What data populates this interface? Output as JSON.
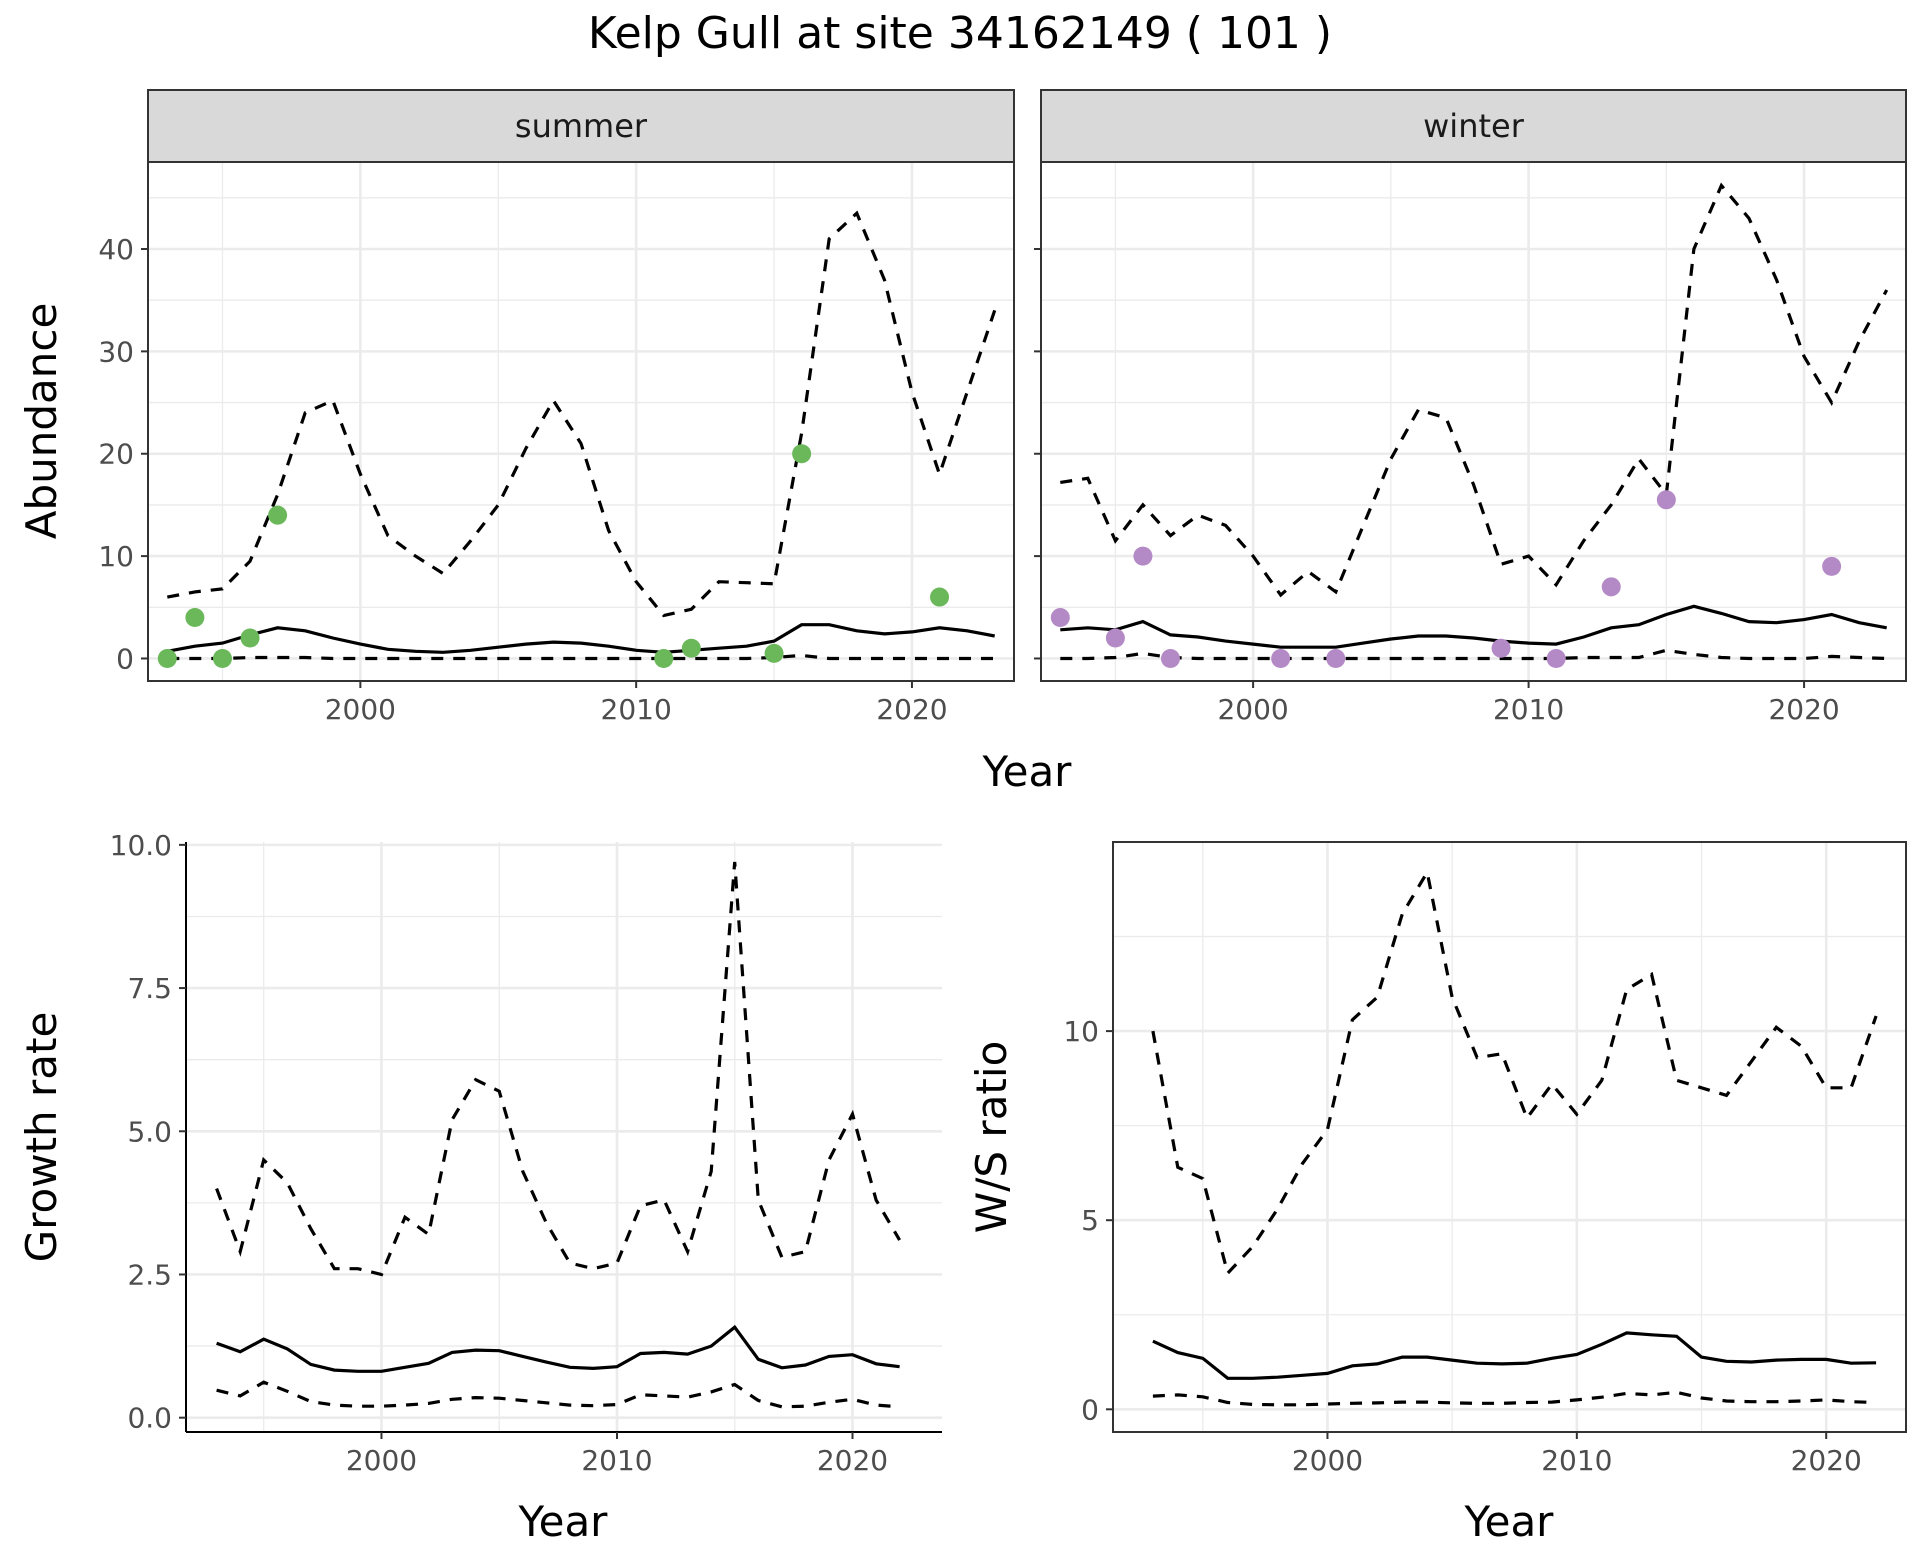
{
  "title": "Kelp Gull at site 34162149 ( 101 )",
  "colors": {
    "summer_points": "#6ab85a",
    "winter_points": "#b48ac6",
    "lines": "#000000",
    "strip_fill": "#d9d9d9",
    "grid": "#ebebeb"
  },
  "chart_data": [
    {
      "type": "line",
      "title": "",
      "ylabel": "Abundance",
      "xlabel": "Year",
      "xlim": [
        1992.3,
        2023.7
      ],
      "ylim": [
        -2.2,
        48.5
      ],
      "x_ticks": [
        2000,
        2010,
        2020
      ],
      "y_ticks": [
        0,
        10,
        20,
        30,
        40
      ],
      "y_tick_labels": [
        "0",
        "10",
        "20",
        "30",
        "40"
      ],
      "grid": true,
      "legend": "none",
      "facets": [
        {
          "strip": "summer",
          "point_color": "#6ab85a",
          "observed": {
            "x": [
              1993,
              1994,
              1995,
              1996,
              1997,
              2011,
              2012,
              2015,
              2016,
              2021
            ],
            "y": [
              0,
              4,
              0,
              2,
              14,
              0,
              1,
              0.5,
              20,
              6
            ]
          },
          "series": [
            {
              "style": "dashed",
              "x": [
                1993,
                1994,
                1995,
                1996,
                1997,
                1998,
                1999,
                2000,
                2001,
                2002,
                2003,
                2004,
                2005,
                2006,
                2007,
                2008,
                2009,
                2010,
                2011,
                2012,
                2013,
                2014,
                2015,
                2016,
                2017,
                2018,
                2019,
                2020,
                2021,
                2022,
                2023
              ],
              "values": [
                6,
                6.5,
                6.8,
                9.5,
                16,
                24,
                25.2,
                18,
                12,
                10,
                8.3,
                11.5,
                15,
                20.5,
                25.2,
                21,
                12.5,
                7.5,
                4.2,
                4.8,
                7.5,
                7.4,
                7.3,
                22,
                41,
                43.5,
                37,
                26,
                18,
                26,
                34
              ]
            },
            {
              "style": "solid",
              "x": [
                1993,
                1994,
                1995,
                1996,
                1997,
                1998,
                1999,
                2000,
                2001,
                2002,
                2003,
                2004,
                2005,
                2006,
                2007,
                2008,
                2009,
                2010,
                2011,
                2012,
                2013,
                2014,
                2015,
                2016,
                2017,
                2018,
                2019,
                2020,
                2021,
                2022,
                2023
              ],
              "values": [
                0.7,
                1.2,
                1.5,
                2.3,
                3.0,
                2.7,
                2.0,
                1.4,
                0.9,
                0.7,
                0.6,
                0.8,
                1.1,
                1.4,
                1.6,
                1.5,
                1.2,
                0.8,
                0.6,
                0.8,
                1.0,
                1.2,
                1.7,
                3.3,
                3.3,
                2.7,
                2.4,
                2.6,
                3.0,
                2.7,
                2.2
              ]
            },
            {
              "style": "dashed",
              "x": [
                1993,
                1994,
                1995,
                1996,
                1997,
                1998,
                1999,
                2000,
                2001,
                2002,
                2003,
                2004,
                2005,
                2006,
                2007,
                2008,
                2009,
                2010,
                2011,
                2012,
                2013,
                2014,
                2015,
                2016,
                2017,
                2018,
                2019,
                2020,
                2021,
                2022,
                2023
              ],
              "values": [
                0,
                0,
                0,
                0.1,
                0.1,
                0.1,
                0,
                0,
                0,
                0,
                0,
                0,
                0,
                0,
                0,
                0,
                0,
                0,
                0,
                0,
                0,
                0,
                0.1,
                0.3,
                0,
                0,
                0,
                0,
                0,
                0,
                0
              ]
            }
          ]
        },
        {
          "strip": "winter",
          "point_color": "#b48ac6",
          "observed": {
            "x": [
              1993,
              1995,
              1996,
              1997,
              2001,
              2003,
              2009,
              2011,
              2013,
              2015,
              2021
            ],
            "y": [
              4,
              2,
              10,
              0,
              0,
              0,
              1,
              0,
              7,
              15.5,
              9
            ]
          },
          "series": [
            {
              "style": "dashed",
              "x": [
                1993,
                1994,
                1995,
                1996,
                1997,
                1998,
                1999,
                2000,
                2001,
                2002,
                2003,
                2004,
                2005,
                2006,
                2007,
                2008,
                2009,
                2010,
                2011,
                2012,
                2013,
                2014,
                2015,
                2016,
                2017,
                2018,
                2019,
                2020,
                2021,
                2022,
                2023
              ],
              "values": [
                17.2,
                17.6,
                11.5,
                15,
                12,
                14,
                13,
                10,
                6.2,
                8.5,
                6.5,
                13,
                19.5,
                24.3,
                23.5,
                17,
                9.2,
                10,
                7.2,
                11.5,
                15,
                19.5,
                16,
                40,
                46.2,
                43,
                37,
                29.5,
                25,
                31,
                36
              ]
            },
            {
              "style": "solid",
              "x": [
                1993,
                1994,
                1995,
                1996,
                1997,
                1998,
                1999,
                2000,
                2001,
                2002,
                2003,
                2004,
                2005,
                2006,
                2007,
                2008,
                2009,
                2010,
                2011,
                2012,
                2013,
                2014,
                2015,
                2016,
                2017,
                2018,
                2019,
                2020,
                2021,
                2022,
                2023
              ],
              "values": [
                2.8,
                3.0,
                2.8,
                3.6,
                2.3,
                2.1,
                1.7,
                1.4,
                1.1,
                1.1,
                1.1,
                1.5,
                1.9,
                2.2,
                2.2,
                2.0,
                1.7,
                1.5,
                1.4,
                2.1,
                3.0,
                3.3,
                4.3,
                5.1,
                4.4,
                3.6,
                3.5,
                3.8,
                4.3,
                3.5,
                3.0
              ]
            },
            {
              "style": "dashed",
              "x": [
                1993,
                1994,
                1995,
                1996,
                1997,
                1998,
                1999,
                2000,
                2001,
                2002,
                2003,
                2004,
                2005,
                2006,
                2007,
                2008,
                2009,
                2010,
                2011,
                2012,
                2013,
                2014,
                2015,
                2016,
                2017,
                2018,
                2019,
                2020,
                2021,
                2022,
                2023
              ],
              "values": [
                0,
                0,
                0.1,
                0.5,
                0.1,
                0,
                0,
                0,
                0,
                0,
                0,
                0,
                0,
                0,
                0,
                0,
                0,
                0,
                0,
                0.1,
                0.1,
                0.1,
                0.8,
                0.4,
                0.1,
                0,
                0,
                0,
                0.2,
                0.1,
                0
              ]
            }
          ]
        }
      ]
    },
    {
      "type": "line",
      "title": "",
      "ylabel": "Growth rate",
      "xlabel": "Year",
      "xlim": [
        1991.7,
        2023.8
      ],
      "ylim": [
        -0.25,
        10.05
      ],
      "x_ticks": [
        2000,
        2010,
        2020
      ],
      "y_ticks": [
        0,
        2.5,
        5,
        7.5,
        10
      ],
      "y_tick_labels": [
        "0.0",
        "2.5",
        "5.0",
        "7.5",
        "10.0"
      ],
      "grid": true,
      "legend": "none",
      "series": [
        {
          "style": "dashed",
          "x": [
            1993,
            1994,
            1995,
            1996,
            1997,
            1998,
            1999,
            2000,
            2001,
            2002,
            2003,
            2004,
            2005,
            2006,
            2007,
            2008,
            2009,
            2010,
            2011,
            2012,
            2013,
            2014,
            2015,
            2016,
            2017,
            2018,
            2019,
            2020,
            2021,
            2022
          ],
          "values": [
            4.0,
            2.9,
            4.5,
            4.1,
            3.3,
            2.6,
            2.6,
            2.5,
            3.5,
            3.2,
            5.2,
            5.9,
            5.7,
            4.3,
            3.4,
            2.7,
            2.6,
            2.7,
            3.7,
            3.8,
            2.9,
            4.3,
            9.7,
            3.8,
            2.8,
            2.9,
            4.5,
            5.3,
            3.8,
            3.1
          ]
        },
        {
          "style": "solid",
          "x": [
            1993,
            1994,
            1995,
            1996,
            1997,
            1998,
            1999,
            2000,
            2001,
            2002,
            2003,
            2004,
            2005,
            2006,
            2007,
            2008,
            2009,
            2010,
            2011,
            2012,
            2013,
            2014,
            2015,
            2016,
            2017,
            2018,
            2019,
            2020,
            2021,
            2022
          ],
          "values": [
            1.3,
            1.15,
            1.37,
            1.2,
            0.93,
            0.83,
            0.81,
            0.81,
            0.88,
            0.95,
            1.14,
            1.18,
            1.17,
            1.07,
            0.97,
            0.88,
            0.86,
            0.89,
            1.12,
            1.14,
            1.11,
            1.25,
            1.58,
            1.02,
            0.87,
            0.92,
            1.07,
            1.1,
            0.94,
            0.89
          ]
        },
        {
          "style": "dashed",
          "x": [
            1993,
            1994,
            1995,
            1996,
            1997,
            1998,
            1999,
            2000,
            2001,
            2002,
            2003,
            2004,
            2005,
            2006,
            2007,
            2008,
            2009,
            2010,
            2011,
            2012,
            2013,
            2014,
            2015,
            2016,
            2017,
            2018,
            2019,
            2020,
            2021,
            2022
          ],
          "values": [
            0.48,
            0.38,
            0.62,
            0.46,
            0.28,
            0.22,
            0.2,
            0.2,
            0.22,
            0.25,
            0.32,
            0.35,
            0.34,
            0.3,
            0.26,
            0.22,
            0.21,
            0.23,
            0.4,
            0.38,
            0.36,
            0.45,
            0.58,
            0.3,
            0.19,
            0.2,
            0.27,
            0.32,
            0.22,
            0.19
          ]
        }
      ]
    },
    {
      "type": "line",
      "title": "",
      "ylabel": "W/S ratio",
      "xlabel": "Year",
      "xlim": [
        1991.4,
        2023.2
      ],
      "ylim": [
        -0.6,
        15.0
      ],
      "x_ticks": [
        2000,
        2010,
        2020
      ],
      "y_ticks": [
        0,
        5,
        10
      ],
      "y_tick_labels": [
        "0",
        "5",
        "10"
      ],
      "grid": true,
      "legend": "none",
      "series": [
        {
          "style": "dashed",
          "x": [
            1993,
            1994,
            1995,
            1996,
            1997,
            1998,
            1999,
            2000,
            2001,
            2002,
            2003,
            2004,
            2005,
            2006,
            2007,
            2008,
            2009,
            2010,
            2011,
            2012,
            2013,
            2014,
            2015,
            2016,
            2017,
            2018,
            2019,
            2020,
            2021,
            2022
          ],
          "values": [
            10,
            6.4,
            6.1,
            3.6,
            4.3,
            5.3,
            6.5,
            7.4,
            10.3,
            10.9,
            13.1,
            14.2,
            10.9,
            9.3,
            9.4,
            7.7,
            8.6,
            7.8,
            8.7,
            11.1,
            11.5,
            8.7,
            8.5,
            8.3,
            9.2,
            10.1,
            9.6,
            8.5,
            8.5,
            10.4
          ]
        },
        {
          "style": "solid",
          "x": [
            1993,
            1994,
            1995,
            1996,
            1997,
            1998,
            1999,
            2000,
            2001,
            2002,
            2003,
            2004,
            2005,
            2006,
            2007,
            2008,
            2009,
            2010,
            2011,
            2012,
            2013,
            2014,
            2015,
            2016,
            2017,
            2018,
            2019,
            2020,
            2021,
            2022
          ],
          "values": [
            1.8,
            1.5,
            1.35,
            0.82,
            0.82,
            0.85,
            0.9,
            0.95,
            1.15,
            1.2,
            1.38,
            1.38,
            1.3,
            1.22,
            1.2,
            1.22,
            1.35,
            1.45,
            1.72,
            2.02,
            1.97,
            1.93,
            1.38,
            1.27,
            1.25,
            1.3,
            1.32,
            1.32,
            1.22,
            1.23
          ]
        },
        {
          "style": "dashed",
          "x": [
            1993,
            1994,
            1995,
            1996,
            1997,
            1998,
            1999,
            2000,
            2001,
            2002,
            2003,
            2004,
            2005,
            2006,
            2007,
            2008,
            2009,
            2010,
            2011,
            2012,
            2013,
            2014,
            2015,
            2016,
            2017,
            2018,
            2019,
            2020,
            2021,
            2022
          ],
          "values": [
            0.35,
            0.38,
            0.33,
            0.18,
            0.13,
            0.12,
            0.12,
            0.14,
            0.16,
            0.17,
            0.19,
            0.19,
            0.17,
            0.16,
            0.16,
            0.18,
            0.19,
            0.25,
            0.32,
            0.42,
            0.38,
            0.45,
            0.3,
            0.22,
            0.2,
            0.2,
            0.22,
            0.25,
            0.2,
            0.18
          ]
        }
      ]
    }
  ]
}
